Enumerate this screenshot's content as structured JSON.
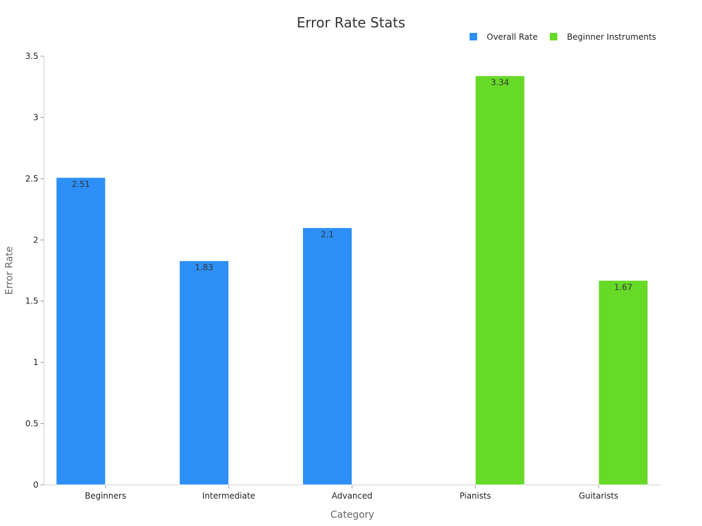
{
  "chart_data": {
    "type": "bar",
    "title": "Error Rate Stats",
    "xlabel": "Category",
    "ylabel": "Error Rate",
    "categories": [
      "Beginners",
      "Intermediate",
      "Advanced",
      "Pianists",
      "Guitarists"
    ],
    "series": [
      {
        "name": "Overall Rate",
        "color": "#2d8ff7",
        "values": [
          2.51,
          1.83,
          2.1,
          null,
          null
        ]
      },
      {
        "name": "Beginner Instruments",
        "color": "#67da28",
        "values": [
          null,
          null,
          null,
          3.34,
          1.67
        ]
      }
    ],
    "data_labels": [
      "2.51",
      "1.83",
      "2.1",
      "3.34",
      "1.67"
    ],
    "ylim": [
      0,
      3.5
    ],
    "yticks": [
      0,
      0.5,
      1,
      1.5,
      2,
      2.5,
      3,
      3.5
    ],
    "ytick_labels": [
      "0",
      "0.5",
      "1",
      "1.5",
      "2",
      "2.5",
      "3",
      "3.5"
    ],
    "grid": false,
    "legend_position": "top-right"
  }
}
